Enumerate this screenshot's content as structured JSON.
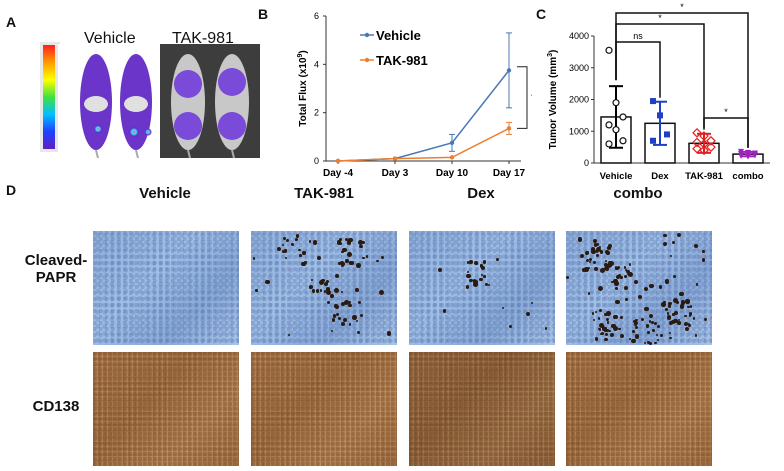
{
  "panels": {
    "a": "A",
    "b": "B",
    "c": "C",
    "d": "D"
  },
  "panel_a": {
    "vehicle": "Vehicle",
    "tak": "TAK-981"
  },
  "chart_data": [
    {
      "type": "line",
      "categories": [
        "Day -4",
        "Day 3",
        "Day 10",
        "Day 17"
      ],
      "ylabel_main": "Total Flux (x10",
      "ylabel_sup": "9",
      "ylabel_end": ")",
      "ylim": [
        0,
        6
      ],
      "yticks": [
        "0",
        "2",
        "4",
        "6"
      ],
      "series": [
        {
          "name": "Vehicle",
          "color": "#4a78b5",
          "values": [
            0,
            0.1,
            0.75,
            3.75
          ],
          "err": [
            0,
            0,
            0.35,
            1.55
          ]
        },
        {
          "name": "TAK-981",
          "color": "#ee7d32",
          "values": [
            0,
            0.1,
            0.15,
            1.35
          ],
          "err": [
            0,
            0,
            0,
            0.25
          ]
        }
      ],
      "significance": "*"
    },
    {
      "type": "bar",
      "categories": [
        "Vehicle",
        "Dex",
        "TAK-981",
        "combo"
      ],
      "ylabel_main": "Tumor Volume (mm",
      "ylabel_sup": "3",
      "ylabel_end": ")",
      "ylim": [
        0,
        4000
      ],
      "yticks": [
        "0",
        "1000",
        "2000",
        "3000",
        "4000"
      ],
      "values": [
        1450,
        1250,
        620,
        280
      ],
      "err": [
        970,
        680,
        300,
        70
      ],
      "colors": [
        "#000000",
        "#1f3fc4",
        "#e02020",
        "#a020c0"
      ],
      "points": [
        [
          3550,
          1900,
          1450,
          1200,
          1050,
          700,
          600
        ],
        [
          1950,
          1500,
          900,
          700
        ],
        [
          950,
          850,
          700,
          650,
          600,
          500,
          450,
          400
        ],
        [
          350,
          320,
          300,
          280,
          260,
          240,
          220,
          200
        ]
      ],
      "comparisons": [
        {
          "label": "*"
        },
        {
          "label": "*"
        },
        {
          "label": "ns"
        },
        {
          "label": "*"
        }
      ]
    }
  ],
  "panel_d": {
    "columns": [
      "Vehicle",
      "TAK-981",
      "Dex",
      "combo"
    ],
    "row1_line1": "Cleaved-",
    "row1_line2": "PAPR",
    "row2": "CD138"
  }
}
